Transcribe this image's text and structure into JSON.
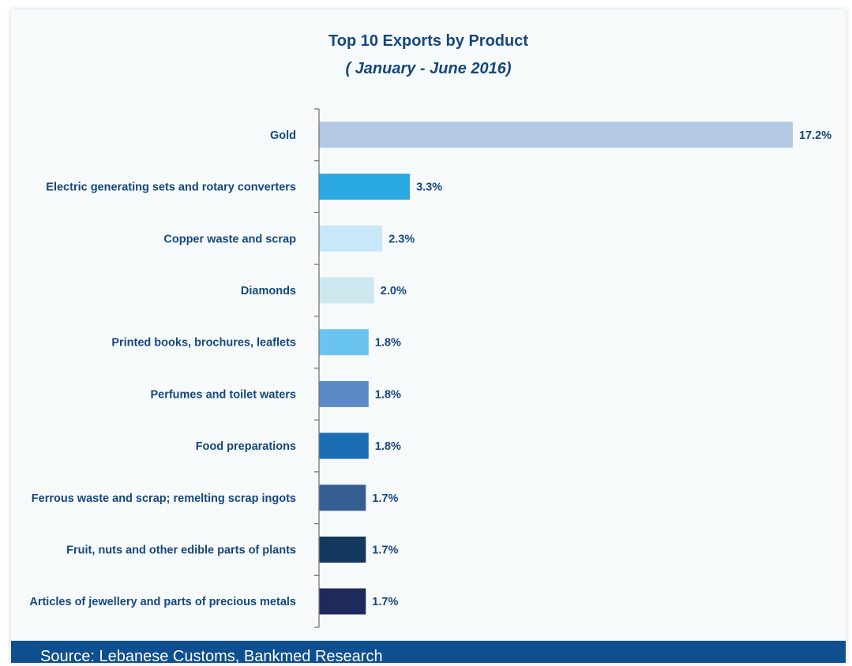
{
  "chart_data": {
    "type": "bar",
    "orientation": "horizontal",
    "title": "Top 10 Exports by Product",
    "subtitle": "( January - June 2016)",
    "categories": [
      "Gold",
      "Electric generating sets and rotary converters",
      "Copper waste and scrap",
      "Diamonds",
      "Printed books, brochures, leaflets",
      "Perfumes and toilet waters",
      "Food preparations",
      "Ferrous waste and scrap; remelting scrap ingots",
      "Fruit, nuts and other edible parts of plants",
      "Articles of jewellery and parts of precious metals"
    ],
    "values": [
      17.2,
      3.3,
      2.3,
      2.0,
      1.8,
      1.8,
      1.8,
      1.7,
      1.7,
      1.7
    ],
    "value_labels": [
      "17.2%",
      "3.3%",
      "2.3%",
      "2.0%",
      "1.8%",
      "1.8%",
      "1.8%",
      "1.7%",
      "1.7%",
      "1.7%"
    ],
    "unit": "%",
    "bar_colors": [
      "#b2c8e3",
      "#29a8e1",
      "#c8e7f8",
      "#cde8ef",
      "#6ac4f0",
      "#5b8bc7",
      "#1b6db4",
      "#345e91",
      "#14375e",
      "#1e2a5c"
    ],
    "xlim": [
      0,
      17.2
    ],
    "grid": false,
    "legend": "none"
  },
  "colors": {
    "text": "#14477e",
    "footer_bg": "#0e4f8f",
    "axis": "#777777"
  },
  "footer": {
    "source": "Source: Lebanese Customs, Bankmed Research"
  }
}
